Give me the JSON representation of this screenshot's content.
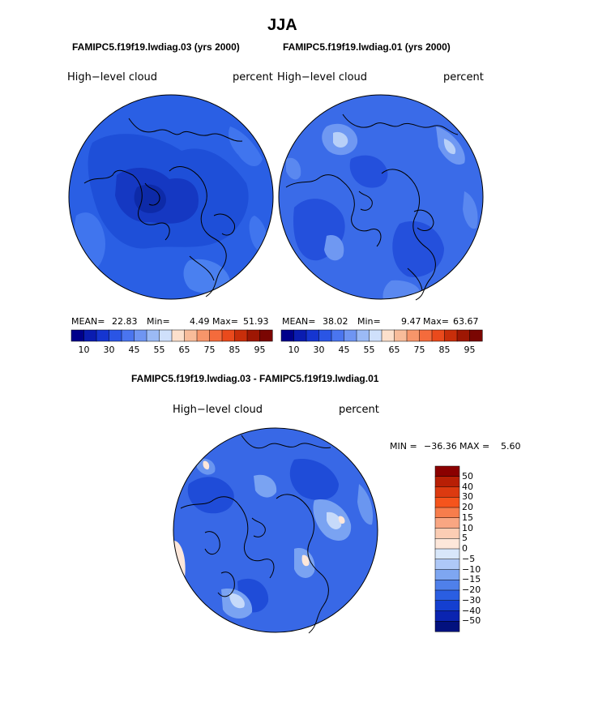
{
  "title": "JJA",
  "panels": [
    {
      "case": "FAMIPC5.f19f19.lwdiag.03 (yrs 2000)",
      "variable": "High−level cloud",
      "units": "percent",
      "mean_label": "MEAN=",
      "mean": "22.83",
      "min_label": "Min=",
      "min": "4.49",
      "max_label": "Max=",
      "max": "51.93"
    },
    {
      "case": "FAMIPC5.f19f19.lwdiag.01 (yrs 2000)",
      "variable": "High−level cloud",
      "units": "percent",
      "mean_label": "MEAN=",
      "mean": "38.02",
      "min_label": "Min=",
      "min": "9.47",
      "max_label": "Max=",
      "max": "63.67"
    }
  ],
  "colorbar_top": {
    "ticks": [
      "10",
      "30",
      "45",
      "55",
      "65",
      "75",
      "85",
      "95"
    ],
    "colors": [
      "#00008b",
      "#0a1cb0",
      "#1535d0",
      "#2a55e5",
      "#4a75ef",
      "#6f95f2",
      "#9bbaf5",
      "#cfe0fb",
      "#fce0cc",
      "#f8bc9a",
      "#f7956a",
      "#f46b3c",
      "#ea4a1c",
      "#c82e0a",
      "#9e1703",
      "#7a0602"
    ]
  },
  "diff": {
    "case": "FAMIPC5.f19f19.lwdiag.03 - FAMIPC5.f19f19.lwdiag.01",
    "variable": "High−level cloud",
    "units": "percent",
    "min_label": "MIN =",
    "min": "−36.36",
    "max_label": "MAX =",
    "max": "5.60"
  },
  "colorbar_diff": {
    "labels": [
      "50",
      "40",
      "30",
      "20",
      "15",
      "10",
      "5",
      "0",
      "−5",
      "−10",
      "−15",
      "−20",
      "−30",
      "−40",
      "−50"
    ],
    "colors": [
      "#8b0000",
      "#b81f05",
      "#dc3a10",
      "#f5541c",
      "#f77d4c",
      "#f9a682",
      "#fbcdb4",
      "#fde7da",
      "#d8e7fa",
      "#aec8f7",
      "#7ea6f1",
      "#4f80ea",
      "#2a5ee2",
      "#143fd0",
      "#0a24b0",
      "#02117e"
    ]
  },
  "colors": {
    "coast": "#000000",
    "base_top_left": "#1e4fd8",
    "base_top_right": "#2f5fe6",
    "base_diff": "#3a66e6"
  }
}
